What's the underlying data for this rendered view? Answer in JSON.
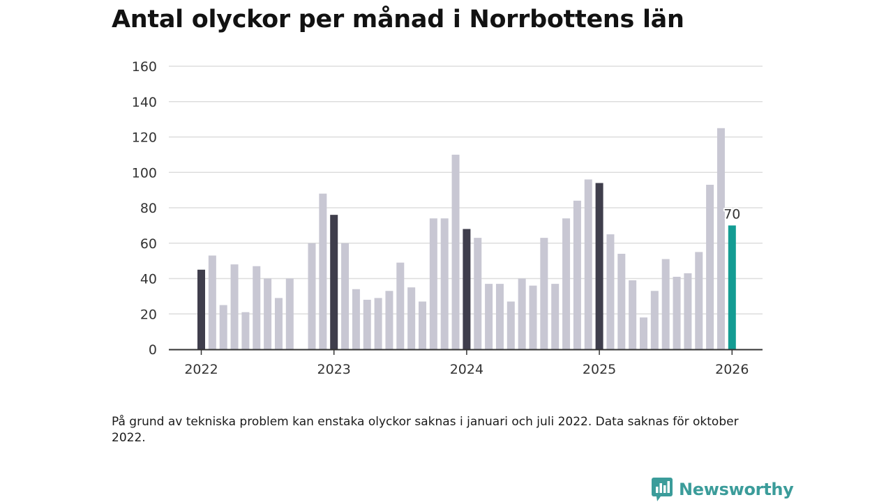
{
  "title": "Antal olyckor per månad i Norrbottens län",
  "note": "På grund av tekniska problem kan enstaka olyckor saknas i januari och juli 2022. Data saknas för oktober 2022.",
  "brand": {
    "name": "Newsworthy",
    "icon": "newsworthy-logo-icon"
  },
  "colors": {
    "regular_bar": "#c8c7d3",
    "january_bar": "#3f3e4c",
    "latest_bar": "#139c93",
    "gridline": "#dddddd",
    "axis": "#333333",
    "brand": "#3b9c9a"
  },
  "chart_data": {
    "type": "bar",
    "title": "Antal olyckor per månad i Norrbottens län",
    "xlabel": "",
    "ylabel": "",
    "ylim": [
      0,
      160
    ],
    "yticks": [
      0,
      20,
      40,
      60,
      80,
      100,
      120,
      140,
      160
    ],
    "grid": true,
    "x_tick_labels": [
      "2022",
      "2023",
      "2024",
      "2025",
      "2026"
    ],
    "categories": [
      "2022-01",
      "2022-02",
      "2022-03",
      "2022-04",
      "2022-05",
      "2022-06",
      "2022-07",
      "2022-08",
      "2022-09",
      "2022-10",
      "2022-11",
      "2022-12",
      "2023-01",
      "2023-02",
      "2023-03",
      "2023-04",
      "2023-05",
      "2023-06",
      "2023-07",
      "2023-08",
      "2023-09",
      "2023-10",
      "2023-11",
      "2023-12",
      "2024-01",
      "2024-02",
      "2024-03",
      "2024-04",
      "2024-05",
      "2024-06",
      "2024-07",
      "2024-08",
      "2024-09",
      "2024-10",
      "2024-11",
      "2024-12",
      "2025-01",
      "2025-02",
      "2025-03",
      "2025-04",
      "2025-05",
      "2025-06",
      "2025-07",
      "2025-08",
      "2025-09",
      "2025-10",
      "2025-11",
      "2025-12",
      "2026-01"
    ],
    "values": [
      45,
      53,
      25,
      48,
      21,
      47,
      40,
      29,
      40,
      null,
      60,
      88,
      76,
      60,
      34,
      28,
      29,
      33,
      49,
      35,
      27,
      74,
      74,
      110,
      68,
      63,
      37,
      37,
      27,
      40,
      36,
      63,
      37,
      74,
      84,
      96,
      94,
      65,
      54,
      39,
      18,
      33,
      51,
      41,
      43,
      55,
      93,
      125,
      70
    ],
    "highlight_label": "70"
  }
}
